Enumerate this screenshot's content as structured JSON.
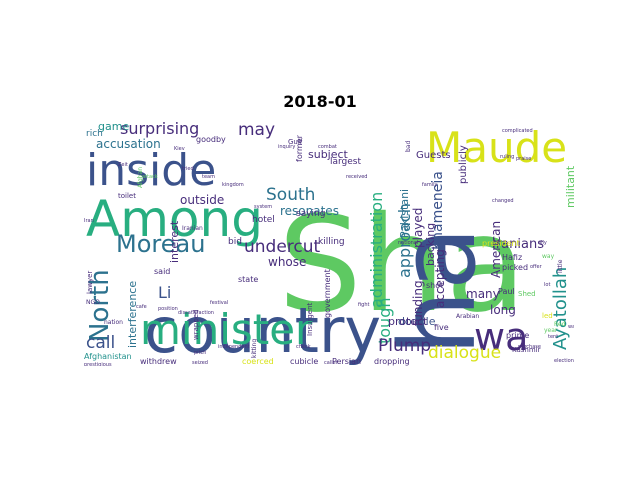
{
  "title": "2018-01",
  "palette": {
    "dark_purple": "#472d7b",
    "indigo": "#3b528b",
    "blue": "#2c728e",
    "teal": "#21918c",
    "green": "#28ae80",
    "light_green": "#5ec962",
    "lime": "#addc30",
    "yellow": "#d8e219"
  },
  "words": [
    {
      "text": "Sha",
      "color": "#5ec962"
    },
    {
      "text": "country",
      "color": "#3b528b"
    },
    {
      "text": "ha",
      "color": "#3b528b"
    },
    {
      "text": "Among",
      "color": "#28ae80"
    },
    {
      "text": "inside",
      "color": "#3b528b"
    },
    {
      "text": "Maude",
      "color": "#d8e219"
    },
    {
      "text": "minister",
      "color": "#28ae80"
    },
    {
      "text": "wa",
      "color": "#472d7b"
    },
    {
      "text": "Moreau",
      "color": "#2c728e"
    },
    {
      "text": "North",
      "color": "#2c728e"
    },
    {
      "text": "surprising",
      "color": "#472d7b"
    },
    {
      "text": "may",
      "color": "#472d7b"
    },
    {
      "text": "undercut",
      "color": "#472d7b"
    },
    {
      "text": "South",
      "color": "#2c728e"
    },
    {
      "text": "administration",
      "color": "#28ae80"
    },
    {
      "text": "approach",
      "color": "#2c728e"
    },
    {
      "text": "Khameneia",
      "color": "#3b528b"
    },
    {
      "text": "Ayatollah",
      "color": "#21918c"
    },
    {
      "text": "dialogue",
      "color": "#d8e219"
    },
    {
      "text": "tough",
      "color": "#28ae80"
    },
    {
      "text": "Plump",
      "color": "#472d7b"
    },
    {
      "text": "call",
      "color": "#3b528b"
    },
    {
      "text": "Li",
      "color": "#3b528b"
    },
    {
      "text": "accusation",
      "color": "#2c728e"
    },
    {
      "text": "game",
      "color": "#21918c"
    },
    {
      "text": "outside",
      "color": "#472d7b"
    },
    {
      "text": "resonates",
      "color": "#2c728e"
    },
    {
      "text": "whose",
      "color": "#472d7b"
    },
    {
      "text": "subject",
      "color": "#472d7b"
    },
    {
      "text": "interference",
      "color": "#2c728e"
    },
    {
      "text": "interest",
      "color": "#472d7b"
    },
    {
      "text": "Iranians",
      "color": "#472d7b"
    },
    {
      "text": "American",
      "color": "#472d7b"
    },
    {
      "text": "played",
      "color": "#472d7b"
    },
    {
      "text": "backing",
      "color": "#472d7b"
    },
    {
      "text": "accepting",
      "color": "#472d7b"
    },
    {
      "text": "double",
      "color": "#3b528b"
    },
    {
      "text": "funding",
      "color": "#472d7b"
    },
    {
      "text": "protect",
      "color": "#472d7b"
    },
    {
      "text": "many",
      "color": "#472d7b"
    },
    {
      "text": "long",
      "color": "#472d7b"
    },
    {
      "text": "Pakistani",
      "color": "#2c728e"
    },
    {
      "text": "Guests",
      "color": "#472d7b"
    },
    {
      "text": "publicly",
      "color": "#472d7b"
    },
    {
      "text": "militant",
      "color": "#5ec962"
    },
    {
      "text": "largest",
      "color": "#472d7b"
    },
    {
      "text": "saying",
      "color": "#472d7b"
    },
    {
      "text": "hotel",
      "color": "#472d7b"
    },
    {
      "text": "bid",
      "color": "#472d7b"
    },
    {
      "text": "killing",
      "color": "#472d7b"
    },
    {
      "text": "government",
      "color": "#472d7b"
    },
    {
      "text": "said",
      "color": "#472d7b"
    },
    {
      "text": "state",
      "color": "#472d7b"
    },
    {
      "text": "lawyer",
      "color": "#472d7b"
    },
    {
      "text": "rich",
      "color": "#2c728e"
    },
    {
      "text": "goodby",
      "color": "#472d7b"
    },
    {
      "text": "former",
      "color": "#472d7b"
    },
    {
      "text": "Gulf",
      "color": "#472d7b"
    },
    {
      "text": "president",
      "color": "#d8e219"
    },
    {
      "text": "Hafiz",
      "color": "#472d7b"
    },
    {
      "text": "picked",
      "color": "#472d7b"
    },
    {
      "text": "Paul",
      "color": "#472d7b"
    },
    {
      "text": "shot",
      "color": "#472d7b"
    },
    {
      "text": "Shed",
      "color": "#5ec962"
    },
    {
      "text": "five",
      "color": "#472d7b"
    },
    {
      "text": "prime",
      "color": "#472d7b"
    },
    {
      "text": "Kashmir",
      "color": "#472d7b"
    },
    {
      "text": "cubicle",
      "color": "#472d7b"
    },
    {
      "text": "Persian",
      "color": "#472d7b"
    },
    {
      "text": "dropping",
      "color": "#472d7b"
    },
    {
      "text": "coerced",
      "color": "#d8e219"
    },
    {
      "text": "withdrew",
      "color": "#472d7b"
    },
    {
      "text": "Afghanistan",
      "color": "#21918c"
    },
    {
      "text": "toilet",
      "color": "#472d7b"
    },
    {
      "text": "Insurgent",
      "color": "#472d7b"
    },
    {
      "text": "wrapped",
      "color": "#472d7b"
    },
    {
      "text": "Afghan",
      "color": "#5ec962"
    },
    {
      "text": "kitting",
      "color": "#472d7b"
    },
    {
      "text": "Iranian",
      "color": "#472d7b"
    },
    {
      "text": "nation",
      "color": "#472d7b"
    },
    {
      "text": "national",
      "color": "#472d7b"
    },
    {
      "text": "complicated",
      "color": "#472d7b"
    },
    {
      "text": "ruling",
      "color": "#472d7b"
    },
    {
      "text": "praise",
      "color": "#472d7b"
    },
    {
      "text": "family",
      "color": "#472d7b"
    },
    {
      "text": "little",
      "color": "#472d7b"
    },
    {
      "text": "Arabian",
      "color": "#472d7b"
    },
    {
      "text": "purchase",
      "color": "#472d7b"
    },
    {
      "text": "election",
      "color": "#472d7b"
    },
    {
      "text": "offer",
      "color": "#472d7b"
    },
    {
      "text": "changed",
      "color": "#472d7b"
    },
    {
      "text": "festival",
      "color": "#472d7b"
    },
    {
      "text": "caller",
      "color": "#472d7b"
    },
    {
      "text": "seized",
      "color": "#472d7b"
    },
    {
      "text": "prestigious",
      "color": "#472d7b"
    },
    {
      "text": "bad",
      "color": "#472d7b"
    },
    {
      "text": "received",
      "color": "#472d7b"
    },
    {
      "text": "kingdom",
      "color": "#472d7b"
    },
    {
      "text": "combat",
      "color": "#472d7b"
    },
    {
      "text": "system",
      "color": "#472d7b"
    },
    {
      "text": "inquiry",
      "color": "#472d7b"
    },
    {
      "text": "team",
      "color": "#472d7b"
    },
    {
      "text": "fight",
      "color": "#472d7b"
    },
    {
      "text": "check",
      "color": "#472d7b"
    },
    {
      "text": "independent",
      "color": "#472d7b"
    },
    {
      "text": "pitch",
      "color": "#472d7b"
    },
    {
      "text": "cafe",
      "color": "#472d7b"
    },
    {
      "text": "position",
      "color": "#472d7b"
    },
    {
      "text": "dissatisfaction",
      "color": "#472d7b"
    },
    {
      "text": "Iran",
      "color": "#472d7b"
    },
    {
      "text": "way",
      "color": "#5ec962"
    },
    {
      "text": "Red",
      "color": "#5ec962"
    },
    {
      "text": "led",
      "color": "#d8e219"
    },
    {
      "text": "ally",
      "color": "#472d7b"
    },
    {
      "text": "NGO",
      "color": "#472d7b"
    },
    {
      "text": "lot",
      "color": "#472d7b"
    },
    {
      "text": "tent",
      "color": "#472d7b"
    },
    {
      "text": "wall",
      "color": "#472d7b"
    },
    {
      "text": "year",
      "color": "#5ec962"
    },
    {
      "text": "tried",
      "color": "#472d7b"
    },
    {
      "text": "attack",
      "color": "#5ec962"
    },
    {
      "text": "Kiev",
      "color": "#472d7b"
    },
    {
      "text": "Zeit",
      "color": "#472d7b"
    }
  ]
}
